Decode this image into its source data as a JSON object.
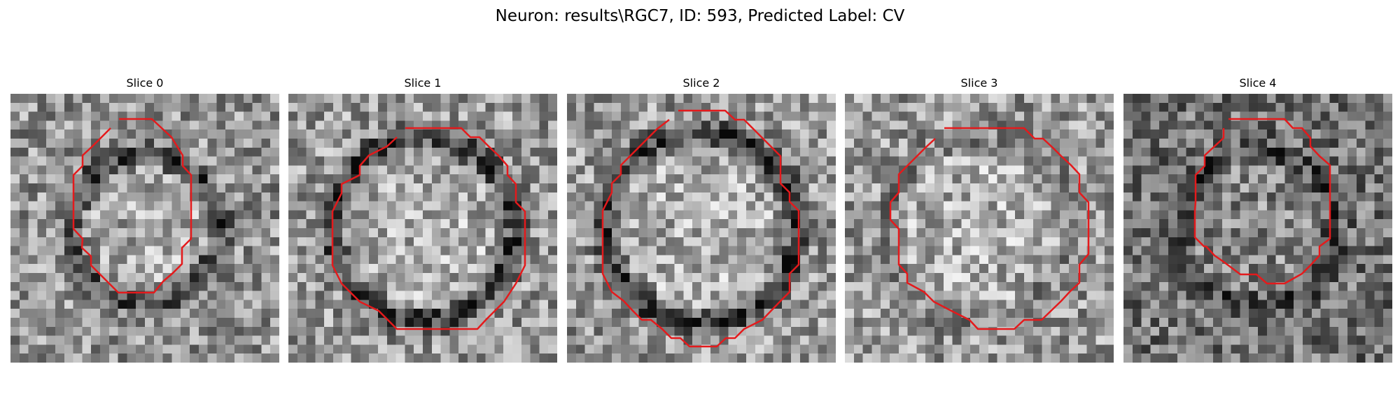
{
  "figure": {
    "title": "Neuron: results\\RGC7, ID: 593, Predicted Label: CV"
  },
  "style": {
    "contour_color": "#e41a1c"
  },
  "panels": [
    {
      "title": "Slice 0",
      "pattern": {
        "radius": 0.55,
        "ring_strength": 0.9,
        "brightness": 0.58,
        "seed": 11
      }
    },
    {
      "title": "Slice 1",
      "pattern": {
        "radius": 0.68,
        "ring_strength": 1.0,
        "brightness": 0.6,
        "seed": 23
      }
    },
    {
      "title": "Slice 2",
      "pattern": {
        "radius": 0.71,
        "ring_strength": 1.1,
        "brightness": 0.6,
        "seed": 37
      }
    },
    {
      "title": "Slice 3",
      "pattern": {
        "radius": 0.68,
        "ring_strength": 0.3,
        "brightness": 0.6,
        "seed": 41
      }
    },
    {
      "title": "Slice 4",
      "pattern": {
        "radius": 0.58,
        "ring_strength": 0.5,
        "brightness": 0.45,
        "seed": 53
      }
    }
  ]
}
